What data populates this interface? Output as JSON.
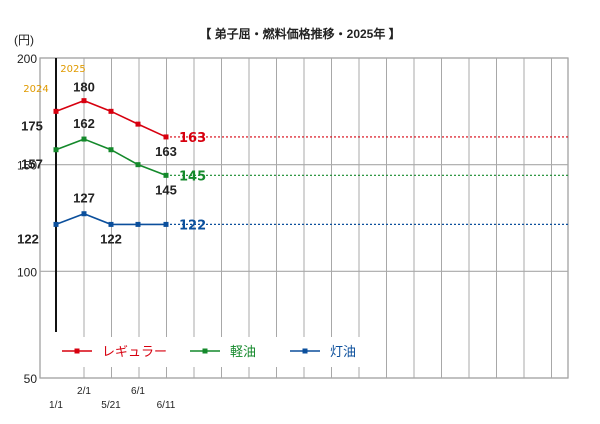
{
  "chart_data": {
    "type": "line",
    "title": "【 弟子屈・燃料価格推移・2025年 】",
    "unit": "(円)",
    "ylim": [
      50,
      200
    ],
    "yticks": [
      50,
      100,
      150,
      200
    ],
    "x": [
      "1/1",
      "2/1",
      "5/21",
      "6/1",
      "6/11"
    ],
    "year_labels": [
      "2024",
      "2025"
    ],
    "grid": true,
    "legend": "bottom-left",
    "series": [
      {
        "name": "レギュラー",
        "color": "#d7000f",
        "values": [
          175,
          180,
          175,
          169,
          163
        ],
        "labels": [
          "175",
          "180",
          "",
          "",
          "163"
        ],
        "end_label": "163"
      },
      {
        "name": "軽油",
        "color": "#14892b",
        "values": [
          157,
          162,
          157,
          150,
          145
        ],
        "labels": [
          "157",
          "162",
          "",
          "",
          "145"
        ],
        "end_label": "145"
      },
      {
        "name": "灯油",
        "color": "#0b4f9c",
        "values": [
          122,
          127,
          122,
          122,
          122
        ],
        "labels": [
          "122",
          "127",
          "122",
          "",
          ""
        ],
        "end_label": "122"
      }
    ]
  }
}
